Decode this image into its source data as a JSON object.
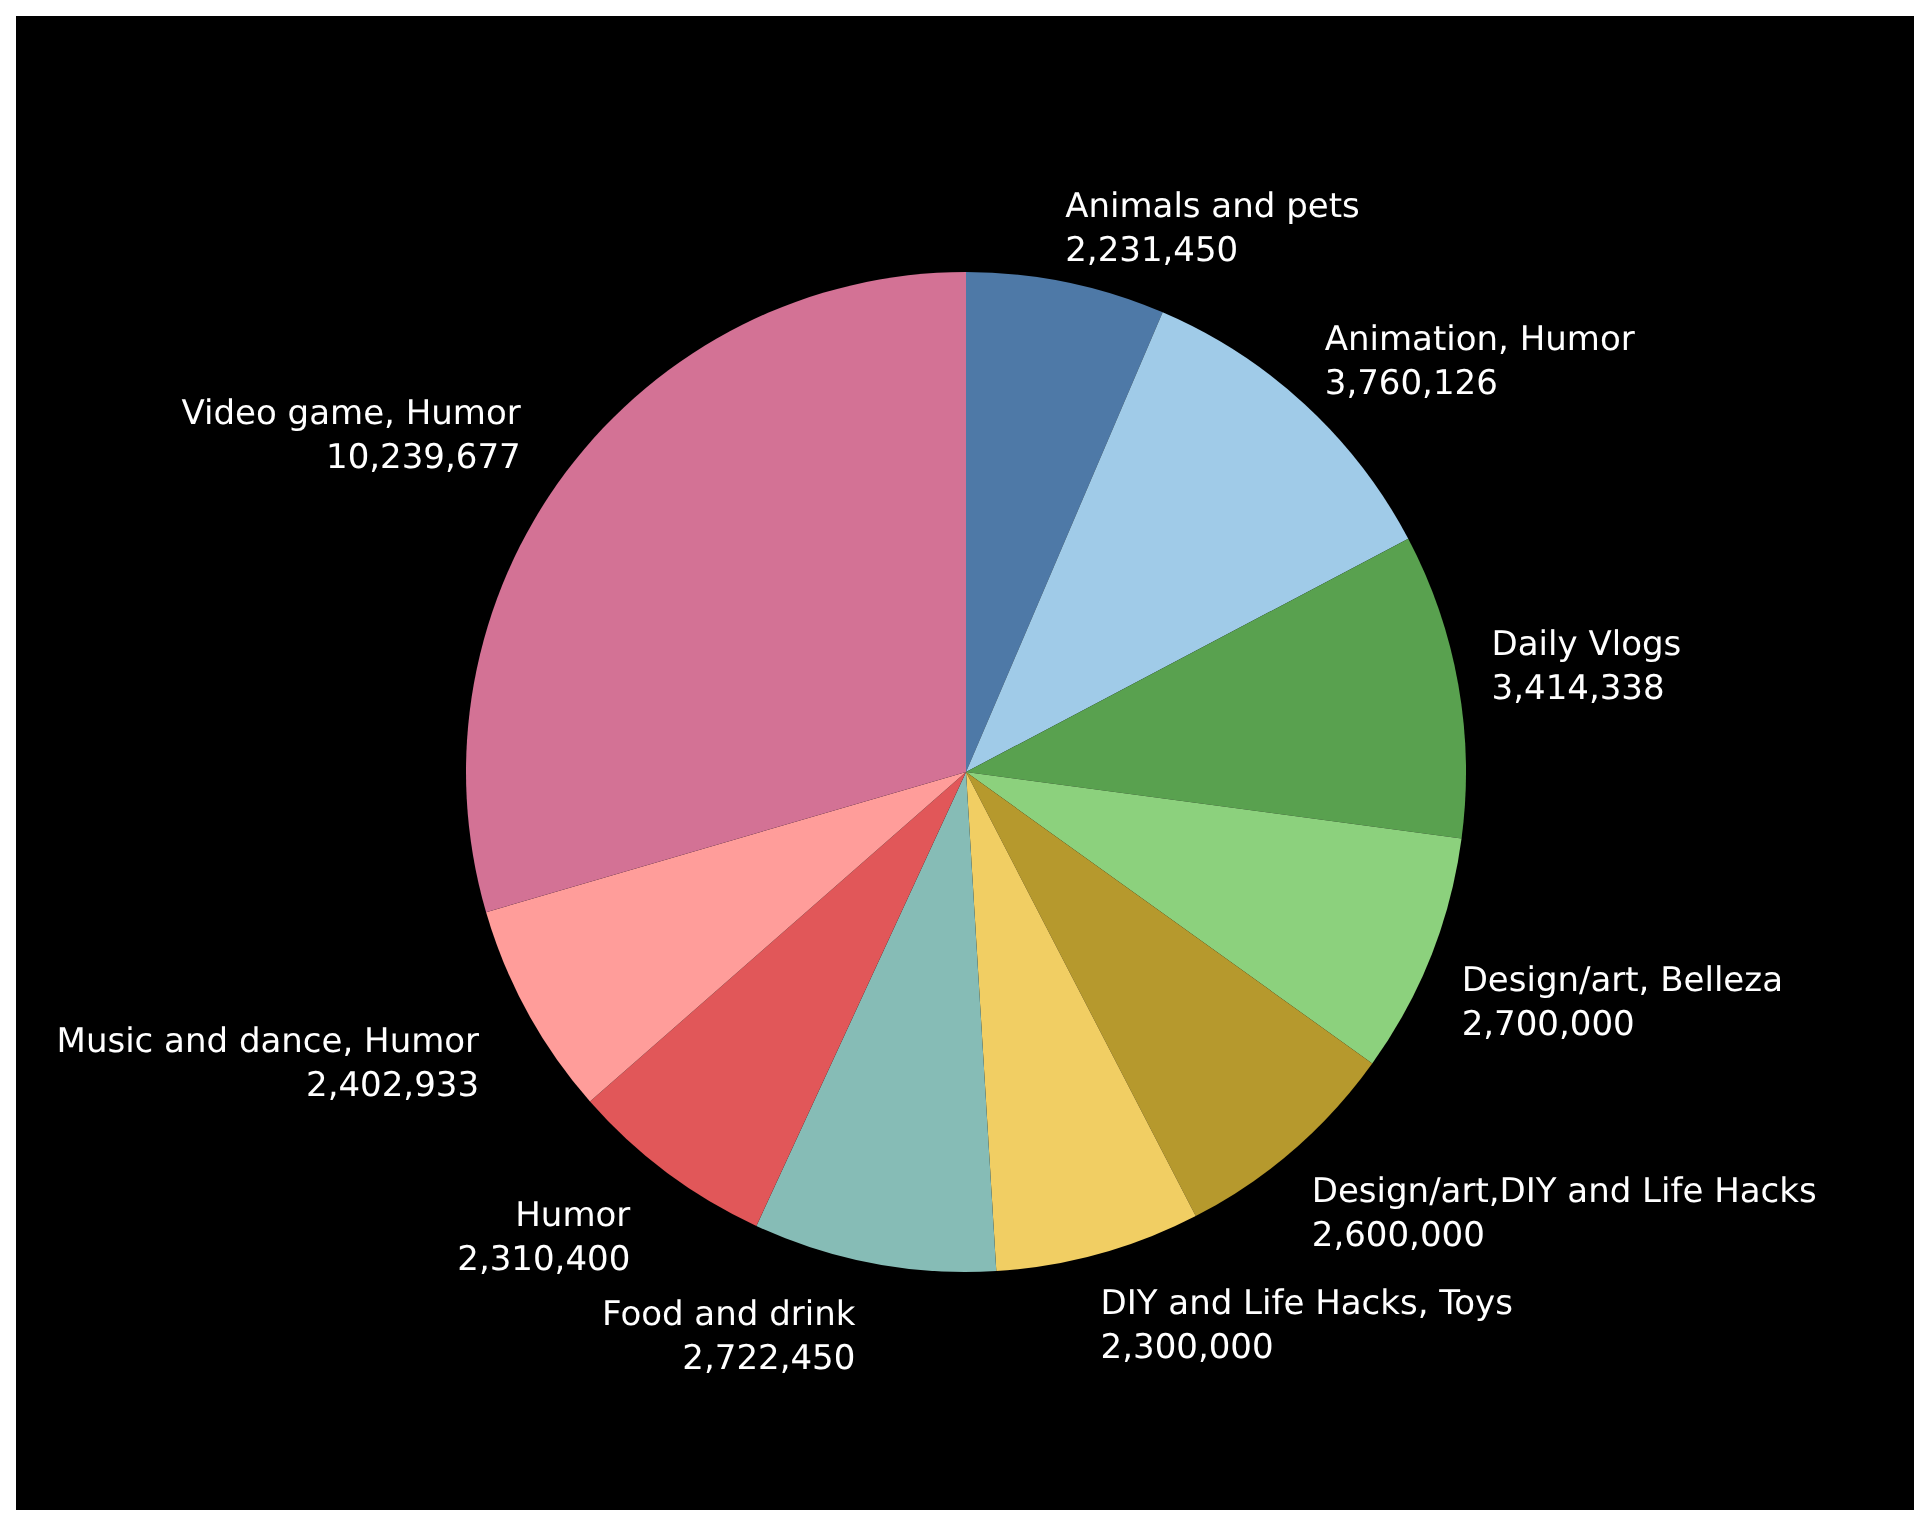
{
  "chart_data": {
    "type": "pie",
    "categories": [
      "Animals and pets",
      "Animation, Humor",
      "Daily Vlogs",
      "Design/art, Belleza",
      "Design/art,DIY and Life Hacks",
      "DIY and Life Hacks, Toys",
      "Food and drink",
      "Humor",
      "Music and dance, Humor",
      "Video game, Humor"
    ],
    "values": [
      2231450,
      3760126,
      3414338,
      2700000,
      2600000,
      2300000,
      2722450,
      2310400,
      2402933,
      10239677
    ],
    "value_labels": [
      "2,231,450",
      "3,760,126",
      "3,414,338",
      "2,700,000",
      "2,600,000",
      "2,300,000",
      "2,722,450",
      "2,310,400",
      "2,402,933",
      "10,239,677"
    ],
    "colors": [
      "#4e79a7",
      "#a0cbe8",
      "#59a14f",
      "#8cd17d",
      "#b6992d",
      "#f1ce63",
      "#86bcb6",
      "#e15759",
      "#ff9d9a",
      "#d37295"
    ],
    "legend": false
  }
}
